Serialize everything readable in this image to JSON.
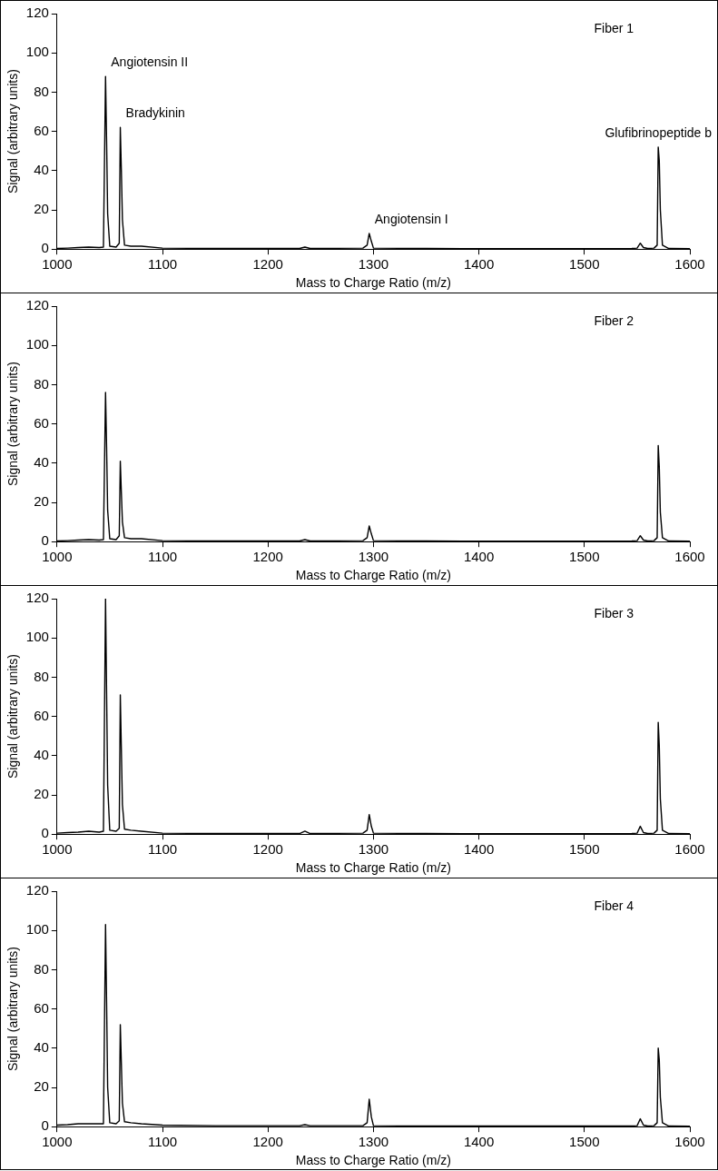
{
  "chart_data": [
    {
      "type": "line",
      "xlabel": "Mass to Charge Ratio (m/z)",
      "ylabel": "Signal (arbitrary units)",
      "xlim": [
        1000,
        1600
      ],
      "xticks": [
        1000,
        1100,
        1200,
        1300,
        1400,
        1500,
        1600
      ],
      "ylim": [
        0,
        120
      ],
      "yticks": [
        0,
        20,
        40,
        60,
        80,
        100,
        120
      ],
      "grid": false,
      "legend": false,
      "marker": "none",
      "annotations": [
        "Fiber 1",
        {
          "text": "Angiotensin II",
          "x": 1046,
          "y": 88
        },
        {
          "text": "Bradykinin",
          "x": 1060,
          "y": 62
        },
        {
          "text": "Angiotensin I",
          "x": 1296,
          "y": 8
        },
        {
          "text": "Glufibrinopeptide b",
          "x": 1570,
          "y": 52
        }
      ],
      "x": [
        1000,
        1010,
        1020,
        1030,
        1040,
        1044,
        1046,
        1047,
        1048,
        1050,
        1056,
        1059,
        1060,
        1061,
        1062,
        1064,
        1070,
        1080,
        1100,
        1150,
        1200,
        1230,
        1235,
        1240,
        1290,
        1294,
        1296,
        1298,
        1300,
        1350,
        1400,
        1450,
        1500,
        1545,
        1550,
        1553,
        1556,
        1560,
        1566,
        1569,
        1570,
        1571,
        1572,
        1574,
        1580,
        1600
      ],
      "series": [
        {
          "color": "#000000",
          "values": [
            0.3,
            0.5,
            0.8,
            1,
            0.8,
            1,
            88,
            55,
            18,
            1.5,
            1,
            3,
            62,
            40,
            15,
            2,
            1.5,
            1.5,
            0.5,
            0.3,
            0.3,
            0.3,
            1,
            0.3,
            0.5,
            2,
            8,
            4,
            0.5,
            0.3,
            0.2,
            0.2,
            0.2,
            0.3,
            0.5,
            3,
            0.8,
            0.3,
            0.5,
            2,
            52,
            45,
            20,
            2,
            0.3,
            0.2
          ]
        }
      ]
    },
    {
      "type": "line",
      "xlabel": "Mass to Charge Ratio (m/z)",
      "ylabel": "Signal (arbitrary units)",
      "xlim": [
        1000,
        1600
      ],
      "xticks": [
        1000,
        1100,
        1200,
        1300,
        1400,
        1500,
        1600
      ],
      "ylim": [
        0,
        120
      ],
      "yticks": [
        0,
        20,
        40,
        60,
        80,
        100,
        120
      ],
      "grid": false,
      "legend": false,
      "marker": "none",
      "annotations": [
        "Fiber 2"
      ],
      "x": [
        1000,
        1010,
        1020,
        1030,
        1040,
        1044,
        1046,
        1047,
        1048,
        1050,
        1056,
        1059,
        1060,
        1061,
        1062,
        1064,
        1070,
        1080,
        1100,
        1150,
        1200,
        1230,
        1235,
        1240,
        1290,
        1294,
        1296,
        1298,
        1300,
        1350,
        1400,
        1450,
        1500,
        1545,
        1550,
        1553,
        1556,
        1560,
        1566,
        1569,
        1570,
        1571,
        1572,
        1574,
        1580,
        1600
      ],
      "series": [
        {
          "color": "#000000",
          "values": [
            0.3,
            0.5,
            0.8,
            1,
            0.8,
            1,
            76,
            48,
            16,
            1.5,
            1,
            3,
            41,
            25,
            10,
            2,
            1.5,
            1.5,
            0.5,
            0.3,
            0.3,
            0.3,
            1,
            0.3,
            0.5,
            2,
            8,
            4,
            0.5,
            0.3,
            0.2,
            0.2,
            0.2,
            0.3,
            0.5,
            3,
            0.8,
            0.3,
            0.5,
            2,
            49,
            38,
            15,
            2,
            0.3,
            0.2
          ]
        }
      ]
    },
    {
      "type": "line",
      "xlabel": "Mass to Charge Ratio (m/z)",
      "ylabel": "Signal (arbitrary units)",
      "xlim": [
        1000,
        1600
      ],
      "xticks": [
        1000,
        1100,
        1200,
        1300,
        1400,
        1500,
        1600
      ],
      "ylim": [
        0,
        120
      ],
      "yticks": [
        0,
        20,
        40,
        60,
        80,
        100,
        120
      ],
      "grid": false,
      "legend": false,
      "marker": "none",
      "annotations": [
        "Fiber 3"
      ],
      "x": [
        1000,
        1010,
        1020,
        1030,
        1040,
        1044,
        1046,
        1047,
        1048,
        1050,
        1056,
        1059,
        1060,
        1061,
        1062,
        1064,
        1070,
        1080,
        1100,
        1150,
        1200,
        1230,
        1235,
        1240,
        1290,
        1294,
        1296,
        1298,
        1300,
        1350,
        1400,
        1450,
        1500,
        1545,
        1550,
        1553,
        1556,
        1560,
        1566,
        1569,
        1570,
        1571,
        1572,
        1574,
        1580,
        1600
      ],
      "series": [
        {
          "color": "#000000",
          "values": [
            0.5,
            0.8,
            1,
            1.5,
            1,
            1.5,
            120,
            72,
            25,
            2,
            1.5,
            3,
            71,
            43,
            15,
            2.5,
            2,
            1.5,
            0.5,
            0.3,
            0.3,
            0.3,
            1.5,
            0.3,
            0.5,
            2,
            10,
            4,
            0.5,
            0.3,
            0.2,
            0.2,
            0.2,
            0.3,
            0.5,
            4,
            0.8,
            0.3,
            0.5,
            2,
            57,
            45,
            18,
            2,
            0.3,
            0.2
          ]
        }
      ]
    },
    {
      "type": "line",
      "xlabel": "Mass to Charge Ratio (m/z)",
      "ylabel": "Signal (arbitrary units)",
      "xlim": [
        1000,
        1600
      ],
      "xticks": [
        1000,
        1100,
        1200,
        1300,
        1400,
        1500,
        1600
      ],
      "ylim": [
        0,
        120
      ],
      "yticks": [
        0,
        20,
        40,
        60,
        80,
        100,
        120
      ],
      "grid": false,
      "legend": false,
      "marker": "none",
      "annotations": [
        "Fiber 4"
      ],
      "x": [
        1000,
        1010,
        1020,
        1030,
        1040,
        1044,
        1046,
        1047,
        1048,
        1050,
        1056,
        1059,
        1060,
        1061,
        1062,
        1064,
        1070,
        1080,
        1100,
        1150,
        1200,
        1230,
        1235,
        1240,
        1290,
        1294,
        1296,
        1298,
        1300,
        1350,
        1400,
        1450,
        1500,
        1545,
        1550,
        1553,
        1556,
        1560,
        1566,
        1569,
        1570,
        1571,
        1572,
        1574,
        1580,
        1600
      ],
      "series": [
        {
          "color": "#000000",
          "values": [
            0.8,
            1,
            1.5,
            1.5,
            1.5,
            1.5,
            103,
            63,
            20,
            2,
            1.5,
            3,
            52,
            32,
            12,
            2.5,
            2,
            1.5,
            0.8,
            0.5,
            0.5,
            0.5,
            1,
            0.5,
            0.5,
            2,
            14,
            5,
            0.5,
            0.3,
            0.3,
            0.3,
            0.3,
            0.3,
            0.5,
            4,
            0.8,
            0.3,
            0.5,
            2,
            40,
            34,
            15,
            2,
            0.3,
            0.2
          ]
        }
      ]
    }
  ]
}
